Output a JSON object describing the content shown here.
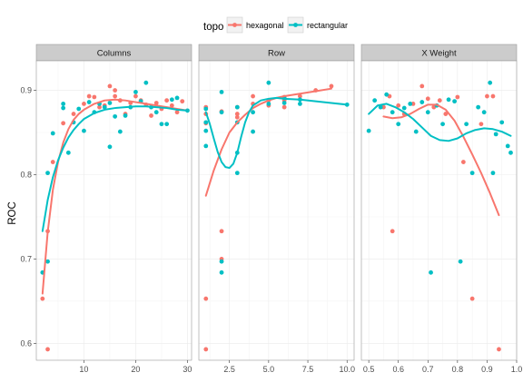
{
  "chart_data": {
    "type": "scatter",
    "ylabel": "ROC",
    "ylim": [
      0.58,
      0.935
    ],
    "yticks": [
      0.6,
      0.7,
      0.8,
      0.9
    ],
    "grid": true,
    "legend": {
      "title": "topo",
      "placement": "top",
      "entries": [
        {
          "name": "hexagonal",
          "color": "#F8766D"
        },
        {
          "name": "rectangular",
          "color": "#00BFC4"
        }
      ]
    },
    "panels": [
      {
        "title": "Columns",
        "xlim": [
          0.8,
          30.8
        ],
        "xticks": [
          10,
          20,
          30
        ],
        "series": [
          {
            "name": "hexagonal",
            "color": "#F8766D",
            "x": [
              2,
              3,
              4,
              6,
              8,
              10,
              11,
              12,
              13,
              14,
              15,
              16,
              16,
              17,
              18,
              19,
              20,
              21,
              22,
              23,
              24,
              25,
              26,
              27,
              28,
              29,
              3
            ],
            "y": [
              0.653,
              0.593,
              0.815,
              0.861,
              0.872,
              0.884,
              0.893,
              0.892,
              0.88,
              0.882,
              0.905,
              0.9,
              0.893,
              0.888,
              0.872,
              0.885,
              0.893,
              0.888,
              0.883,
              0.87,
              0.885,
              0.878,
              0.888,
              0.882,
              0.874,
              0.887,
              0.733
            ],
            "smooth_x": [
              2,
              3,
              4,
              5,
              6,
              7,
              8,
              9,
              10,
              12,
              14,
              16,
              18,
              20,
              22,
              24,
              26,
              28,
              30
            ],
            "smooth_y": [
              0.659,
              0.732,
              0.782,
              0.815,
              0.838,
              0.854,
              0.865,
              0.872,
              0.877,
              0.884,
              0.888,
              0.889,
              0.888,
              0.886,
              0.884,
              0.882,
              0.88,
              0.878,
              0.876
            ]
          },
          {
            "name": "rectangular",
            "color": "#00BFC4",
            "x": [
              2,
              3,
              3,
              4,
              6,
              6,
              7,
              8,
              9,
              10,
              11,
              12,
              13,
              14,
              15,
              15,
              16,
              17,
              18,
              19,
              20,
              21,
              22,
              23,
              24,
              25,
              26,
              27,
              28,
              30
            ],
            "y": [
              0.684,
              0.697,
              0.802,
              0.849,
              0.884,
              0.879,
              0.826,
              0.862,
              0.878,
              0.852,
              0.886,
              0.874,
              0.884,
              0.88,
              0.833,
              0.885,
              0.869,
              0.851,
              0.87,
              0.88,
              0.898,
              0.887,
              0.909,
              0.88,
              0.874,
              0.86,
              0.86,
              0.889,
              0.891,
              0.876
            ],
            "smooth_x": [
              2,
              3,
              4,
              5,
              6,
              7,
              8,
              9,
              10,
              12,
              14,
              16,
              18,
              20,
              22,
              24,
              26,
              28,
              30
            ],
            "smooth_y": [
              0.733,
              0.77,
              0.797,
              0.817,
              0.832,
              0.844,
              0.853,
              0.86,
              0.866,
              0.873,
              0.877,
              0.879,
              0.88,
              0.881,
              0.881,
              0.88,
              0.879,
              0.877,
              0.876
            ]
          }
        ]
      },
      {
        "title": "Row",
        "xlim": [
          0.55,
          10.45
        ],
        "xticks": [
          2.5,
          5.0,
          7.5,
          10.0
        ],
        "series": [
          {
            "name": "hexagonal",
            "color": "#F8766D",
            "x": [
              1,
              1,
              1,
              1,
              1,
              2,
              2,
              2,
              3,
              3,
              3,
              4,
              4,
              5,
              5,
              6,
              6,
              6,
              7,
              8,
              9
            ],
            "y": [
              0.593,
              0.653,
              0.861,
              0.872,
              0.88,
              0.733,
              0.7,
              0.875,
              0.868,
              0.88,
              0.872,
              0.884,
              0.893,
              0.888,
              0.882,
              0.892,
              0.88,
              0.888,
              0.893,
              0.9,
              0.905
            ],
            "smooth_x": [
              1,
              1.5,
              2,
              2.5,
              3,
              3.5,
              4,
              4.5,
              5,
              5.5,
              6,
              7,
              8,
              9
            ],
            "smooth_y": [
              0.775,
              0.805,
              0.83,
              0.85,
              0.862,
              0.871,
              0.879,
              0.884,
              0.888,
              0.891,
              0.893,
              0.896,
              0.899,
              0.902
            ]
          },
          {
            "name": "rectangular",
            "color": "#00BFC4",
            "x": [
              1,
              1,
              1,
              1,
              2,
              2,
              2,
              2,
              3,
              3,
              3,
              3,
              4,
              4,
              5,
              5,
              6,
              6,
              7,
              7,
              10
            ],
            "y": [
              0.834,
              0.852,
              0.862,
              0.878,
              0.684,
              0.697,
              0.874,
              0.898,
              0.802,
              0.826,
              0.862,
              0.88,
              0.851,
              0.874,
              0.909,
              0.884,
              0.885,
              0.891,
              0.889,
              0.884,
              0.883
            ],
            "smooth_x": [
              1,
              1.25,
              1.5,
              1.75,
              2,
              2.25,
              2.5,
              2.75,
              3,
              3.25,
              3.5,
              3.75,
              4,
              4.5,
              5,
              5.5,
              6,
              7,
              8,
              9,
              10
            ],
            "smooth_y": [
              0.874,
              0.86,
              0.843,
              0.827,
              0.815,
              0.809,
              0.808,
              0.813,
              0.826,
              0.845,
              0.862,
              0.874,
              0.882,
              0.888,
              0.89,
              0.891,
              0.89,
              0.889,
              0.887,
              0.885,
              0.883
            ]
          }
        ]
      },
      {
        "title": "X Weight",
        "xlim": [
          0.475,
          1.0
        ],
        "xticks": [
          0.5,
          0.6,
          0.7,
          0.8,
          0.9,
          1.0
        ],
        "series": [
          {
            "name": "hexagonal",
            "color": "#F8766D",
            "x": [
              0.55,
              0.57,
              0.58,
              0.6,
              0.62,
              0.65,
              0.68,
              0.7,
              0.72,
              0.74,
              0.76,
              0.8,
              0.82,
              0.85,
              0.88,
              0.9,
              0.92,
              0.94
            ],
            "y": [
              0.88,
              0.893,
              0.733,
              0.882,
              0.872,
              0.884,
              0.905,
              0.89,
              0.88,
              0.888,
              0.872,
              0.892,
              0.815,
              0.653,
              0.86,
              0.893,
              0.893,
              0.593
            ],
            "smooth_x": [
              0.55,
              0.58,
              0.61,
              0.64,
              0.67,
              0.7,
              0.73,
              0.76,
              0.79,
              0.82,
              0.85,
              0.88,
              0.91,
              0.94
            ],
            "smooth_y": [
              0.869,
              0.867,
              0.868,
              0.872,
              0.878,
              0.883,
              0.883,
              0.877,
              0.864,
              0.845,
              0.824,
              0.802,
              0.778,
              0.752
            ]
          },
          {
            "name": "rectangular",
            "color": "#00BFC4",
            "x": [
              0.5,
              0.52,
              0.54,
              0.56,
              0.58,
              0.6,
              0.62,
              0.64,
              0.66,
              0.68,
              0.7,
              0.71,
              0.73,
              0.75,
              0.77,
              0.79,
              0.81,
              0.83,
              0.85,
              0.87,
              0.89,
              0.91,
              0.92,
              0.93,
              0.95,
              0.97,
              0.98
            ],
            "y": [
              0.852,
              0.888,
              0.88,
              0.895,
              0.874,
              0.86,
              0.879,
              0.884,
              0.851,
              0.886,
              0.874,
              0.684,
              0.882,
              0.86,
              0.889,
              0.887,
              0.697,
              0.86,
              0.802,
              0.88,
              0.874,
              0.909,
              0.802,
              0.848,
              0.862,
              0.834,
              0.826
            ],
            "smooth_x": [
              0.5,
              0.53,
              0.56,
              0.59,
              0.62,
              0.65,
              0.68,
              0.71,
              0.74,
              0.77,
              0.8,
              0.83,
              0.86,
              0.89,
              0.92,
              0.95,
              0.98
            ],
            "smooth_y": [
              0.872,
              0.882,
              0.884,
              0.88,
              0.874,
              0.866,
              0.856,
              0.846,
              0.841,
              0.84,
              0.843,
              0.849,
              0.853,
              0.855,
              0.854,
              0.851,
              0.846
            ]
          }
        ]
      }
    ]
  }
}
